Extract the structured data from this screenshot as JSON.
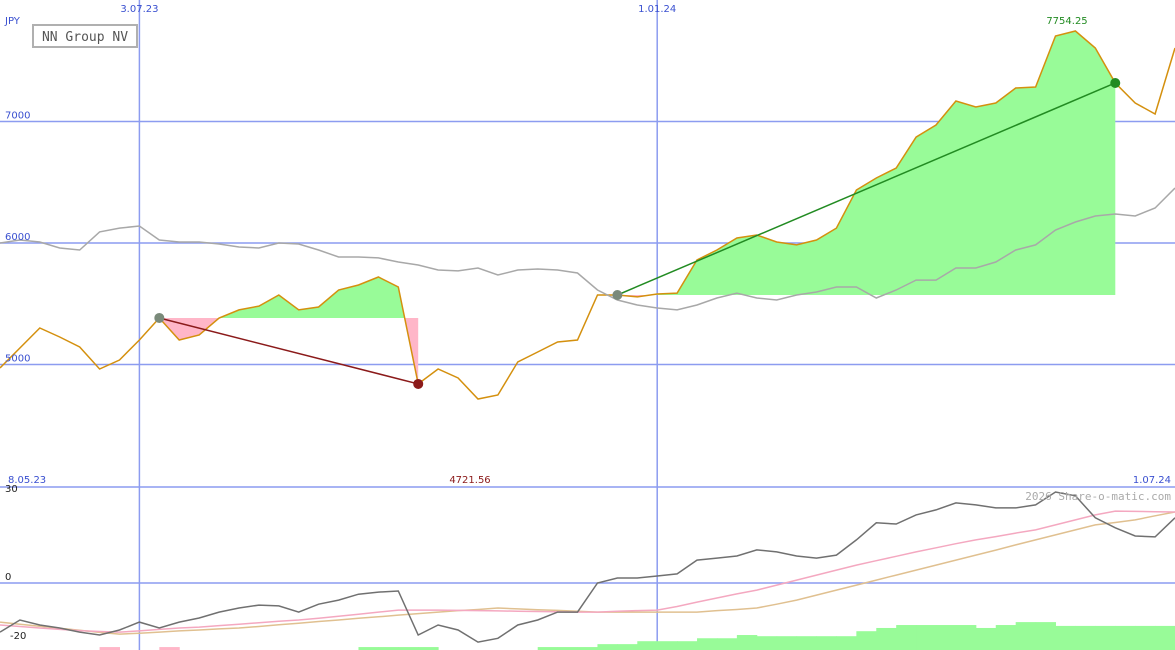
{
  "chart_data": [
    {
      "type": "line",
      "title": "NN Group NV",
      "unit_label": "JPY",
      "categories": [
        null,
        null,
        null,
        null,
        null,
        null,
        null,
        "3.07.23",
        null,
        null,
        null,
        null,
        null,
        null,
        null,
        null,
        null,
        null,
        null,
        null,
        null,
        null,
        null,
        null,
        null,
        null,
        null,
        null,
        null,
        null,
        null,
        null,
        null,
        "1.01.24",
        null,
        null,
        null,
        null,
        null,
        null,
        null,
        null,
        null,
        null,
        null,
        null,
        null,
        null,
        null,
        null,
        null,
        null,
        null,
        null,
        null,
        null,
        null,
        null,
        null,
        null
      ],
      "x_start_label": "8.05.23",
      "x_end_label": "1.07.24",
      "ylim": [
        4000,
        8000
      ],
      "yticks": [
        5000,
        6000,
        7000
      ],
      "grid": true,
      "annotations": [
        {
          "text": "7754.25",
          "color": "#228b22"
        },
        {
          "text": "4721.56",
          "color": "#8b1a1a"
        }
      ],
      "series": [
        {
          "kind": "line",
          "color": "#d4900e",
          "values": [
            4971,
            5136,
            5300,
            5226,
            5144,
            4963,
            5037,
            5202,
            5383,
            5202,
            5243,
            5383,
            5449,
            5481,
            5572,
            5449,
            5473,
            5613,
            5654,
            5720,
            5638,
            4840,
            4963,
            4889,
            4716,
            4749,
            5021,
            5103,
            5185,
            5202,
            5572,
            5572,
            5556,
            5580,
            5588,
            5860,
            5942,
            6041,
            6066,
            6008,
            5984,
            6025,
            6123,
            6436,
            6535,
            6617,
            6872,
            6971,
            7169,
            7119,
            7152,
            7276,
            7284,
            7704,
            7745,
            7605,
            7317,
            7152,
            7062,
            7605
          ]
        },
        {
          "kind": "line",
          "color": "#a8a8a8",
          "values": [
            6000,
            6025,
            6008,
            5959,
            5942,
            6091,
            6123,
            6140,
            6025,
            6008,
            6008,
            5992,
            5967,
            5959,
            6000,
            5992,
            5942,
            5885,
            5885,
            5877,
            5844,
            5819,
            5778,
            5770,
            5794,
            5737,
            5778,
            5786,
            5778,
            5753,
            5613,
            5531,
            5490,
            5465,
            5449,
            5490,
            5547,
            5588,
            5547,
            5531,
            5572,
            5597,
            5638,
            5638,
            5547,
            5613,
            5695,
            5695,
            5794,
            5794,
            5844,
            5942,
            5984,
            6107,
            6173,
            6222,
            6239,
            6222,
            6288,
            6453
          ]
        },
        {
          "kind": "trend",
          "color": "#8b1a1a",
          "values": [
            null,
            null,
            null,
            null,
            null,
            null,
            null,
            null,
            5383,
            null,
            null,
            null,
            null,
            null,
            null,
            null,
            null,
            null,
            null,
            null,
            null,
            4840,
            null,
            null,
            null,
            null,
            null,
            null,
            null,
            null,
            null,
            null,
            null,
            null,
            null,
            null,
            null,
            null,
            null,
            null,
            null,
            null,
            null,
            null,
            null,
            null,
            null,
            null,
            null,
            null,
            null,
            null,
            null,
            null,
            null,
            null,
            null,
            null,
            null,
            null
          ]
        },
        {
          "kind": "trend",
          "color": "#228b22",
          "values": [
            null,
            null,
            null,
            null,
            null,
            null,
            null,
            null,
            null,
            null,
            null,
            null,
            null,
            null,
            null,
            null,
            null,
            null,
            null,
            null,
            null,
            null,
            null,
            null,
            null,
            null,
            null,
            null,
            null,
            null,
            null,
            5572,
            null,
            null,
            null,
            null,
            null,
            null,
            null,
            null,
            null,
            null,
            null,
            null,
            null,
            null,
            null,
            null,
            null,
            null,
            null,
            null,
            null,
            null,
            null,
            null,
            7317,
            null,
            null,
            null
          ]
        }
      ]
    },
    {
      "type": "line",
      "credit": "2026 Share-o-matic.com",
      "ylim": [
        -22.8,
        32.7
      ],
      "yticks": [
        -20,
        0,
        30
      ],
      "series": [
        {
          "kind": "bar",
          "color": "#98fb98",
          "values": [
            null,
            null,
            null,
            null,
            null,
            null,
            null,
            null,
            null,
            null,
            null,
            null,
            null,
            null,
            null,
            null,
            null,
            null,
            -21.8,
            -21.8,
            -21.8,
            -21.8,
            null,
            null,
            null,
            null,
            null,
            -21.8,
            -21.8,
            -21.8,
            -20.8,
            -20.8,
            -19.8,
            -19.8,
            -19.8,
            -18.8,
            -18.8,
            -17.7,
            -18.1,
            -18.1,
            -18.1,
            -18.1,
            -18.1,
            -16.4,
            -15.3,
            -14.3,
            -14.3,
            -14.3,
            -14.3,
            -15.3,
            -14.3,
            -13.3,
            -13.3,
            -14.6,
            -14.6,
            -14.6,
            -14.6,
            -14.6,
            -14.6,
            -14.6
          ]
        },
        {
          "kind": "bar",
          "color": "#ffb6c8",
          "values": [
            null,
            null,
            null,
            null,
            null,
            -21.8,
            null,
            null,
            -21.8,
            null,
            null,
            null,
            null,
            null,
            null,
            null,
            null,
            null,
            null,
            null,
            null,
            null,
            null,
            null,
            null,
            null,
            null,
            null,
            null,
            null,
            null,
            null,
            null,
            null,
            null,
            null,
            null,
            null,
            null,
            null,
            null,
            null,
            null,
            null,
            null,
            null,
            null,
            null,
            null,
            null,
            null,
            null,
            null,
            null,
            null,
            null,
            null,
            null,
            null,
            null
          ]
        },
        {
          "kind": "line",
          "color": "#e0c090",
          "values": [
            -13.3,
            -14.0,
            -14.7,
            -15.4,
            -16.1,
            -16.8,
            -17.4,
            -17.1,
            -16.7,
            -16.3,
            -16.0,
            -15.6,
            -15.3,
            -14.8,
            -14.2,
            -13.7,
            -13.1,
            -12.6,
            -12.0,
            -11.5,
            -10.9,
            -10.4,
            -9.9,
            -9.4,
            -9.0,
            -8.5,
            -8.8,
            -9.1,
            -9.3,
            -9.6,
            -9.9,
            -9.9,
            -9.9,
            -9.9,
            -9.9,
            -9.9,
            -9.4,
            -9.0,
            -8.5,
            -7.2,
            -5.8,
            -4.1,
            -2.4,
            -0.7,
            1.0,
            2.7,
            4.4,
            6.1,
            7.8,
            9.5,
            11.2,
            13.0,
            14.7,
            16.4,
            18.1,
            19.8,
            20.6,
            21.5,
            22.9,
            24.2
          ]
        },
        {
          "kind": "line",
          "color": "#f4a8c0",
          "values": [
            -14.3,
            -14.8,
            -15.3,
            -15.8,
            -16.2,
            -16.5,
            -16.7,
            -16.3,
            -15.8,
            -15.3,
            -15.0,
            -14.5,
            -14.0,
            -13.5,
            -13.0,
            -12.6,
            -12.0,
            -11.3,
            -10.6,
            -9.9,
            -9.2,
            -9.2,
            -9.2,
            -9.3,
            -9.4,
            -9.5,
            -9.6,
            -9.7,
            -9.8,
            -9.9,
            -9.9,
            -9.6,
            -9.4,
            -9.2,
            -8.0,
            -6.5,
            -5.1,
            -3.7,
            -2.4,
            -0.7,
            1.0,
            2.7,
            4.4,
            6.1,
            7.6,
            9.1,
            10.6,
            12.0,
            13.4,
            14.7,
            15.8,
            17.0,
            18.1,
            19.8,
            21.5,
            23.2,
            24.5,
            24.4,
            24.3,
            24.2
          ]
        },
        {
          "kind": "line",
          "color": "#707070",
          "values": [
            -16.7,
            -12.6,
            -14.3,
            -15.3,
            -16.7,
            -17.7,
            -16.0,
            -13.3,
            -15.3,
            -13.3,
            -11.9,
            -9.9,
            -8.5,
            -7.5,
            -7.8,
            -9.9,
            -7.2,
            -5.8,
            -3.8,
            -3.1,
            -2.7,
            -17.7,
            -14.3,
            -16.0,
            -20.1,
            -18.8,
            -14.3,
            -12.6,
            -9.9,
            -9.9,
            0,
            1.7,
            1.7,
            2.4,
            3.1,
            7.8,
            8.5,
            9.2,
            11.3,
            10.6,
            9.2,
            8.5,
            9.5,
            14.7,
            20.5,
            20.1,
            23.2,
            24.9,
            27.3,
            26.6,
            25.6,
            25.6,
            26.6,
            31.0,
            29.7,
            22.2,
            18.8,
            16.0,
            15.7,
            22.2
          ]
        }
      ]
    }
  ]
}
